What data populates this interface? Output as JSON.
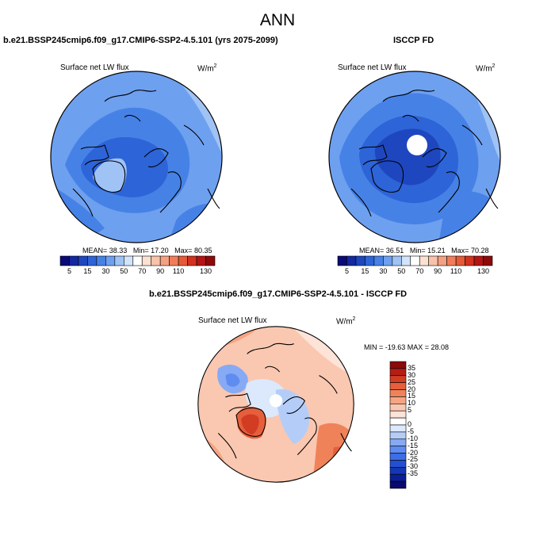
{
  "page": {
    "title": "ANN"
  },
  "panels": [
    {
      "title": "b.e21.BSSP245cmip6.f09_g17.CMIP6-SSP2-4.5.101 (yrs 2075-2099)",
      "variable": "Surface net LW flux",
      "units_base": "W/m",
      "units_exp": "2",
      "stats": {
        "mean_label": "MEAN=",
        "mean": "38.33",
        "min_label": "Min=",
        "min": "17.20",
        "max_label": "Max=",
        "max": "80.35"
      }
    },
    {
      "title": "ISCCP FD",
      "variable": "Surface net LW flux",
      "units_base": "W/m",
      "units_exp": "2",
      "stats": {
        "mean_label": "MEAN=",
        "mean": "36.51",
        "min_label": "Min=",
        "min": "15.21",
        "max_label": "Max=",
        "max": "70.28"
      }
    },
    {
      "title": "b.e21.BSSP245cmip6.f09_g17.CMIP6-SSP2-4.5.101 - ISCCP FD",
      "variable": "Surface net LW flux",
      "units_base": "W/m",
      "units_exp": "2",
      "stats_text": "MIN = -19.63 MAX = 28.08"
    }
  ],
  "abs_colorbar": {
    "colors": [
      "#0a0a78",
      "#1428a0",
      "#1e46be",
      "#2d64d7",
      "#4682e6",
      "#6ea0f0",
      "#a0c3f5",
      "#d2e4fa",
      "#ffffff",
      "#fbe1d2",
      "#f7c3aa",
      "#f5a082",
      "#f07d5a",
      "#e65a37",
      "#d2321e",
      "#b41414",
      "#8c0a0a"
    ],
    "tick_labels": [
      "5",
      "15",
      "30",
      "50",
      "70",
      "90",
      "110",
      "130"
    ]
  },
  "diff_colorbar": {
    "colors": [
      "#0a0a6e",
      "#0a1e96",
      "#1437b4",
      "#2350d2",
      "#3c6ee6",
      "#5f8cf0",
      "#87aaf5",
      "#b4cdf8",
      "#dce8fc",
      "#ffffff",
      "#fde3d8",
      "#fac7b0",
      "#f5a584",
      "#f0825a",
      "#e65f3c",
      "#d23c23",
      "#b41e14",
      "#8c0a0a"
    ],
    "tick_labels": [
      "35",
      "30",
      "25",
      "20",
      "15",
      "10",
      "5",
      "0",
      "-5",
      "-10",
      "-15",
      "-20",
      "-25",
      "-30",
      "-35"
    ]
  }
}
